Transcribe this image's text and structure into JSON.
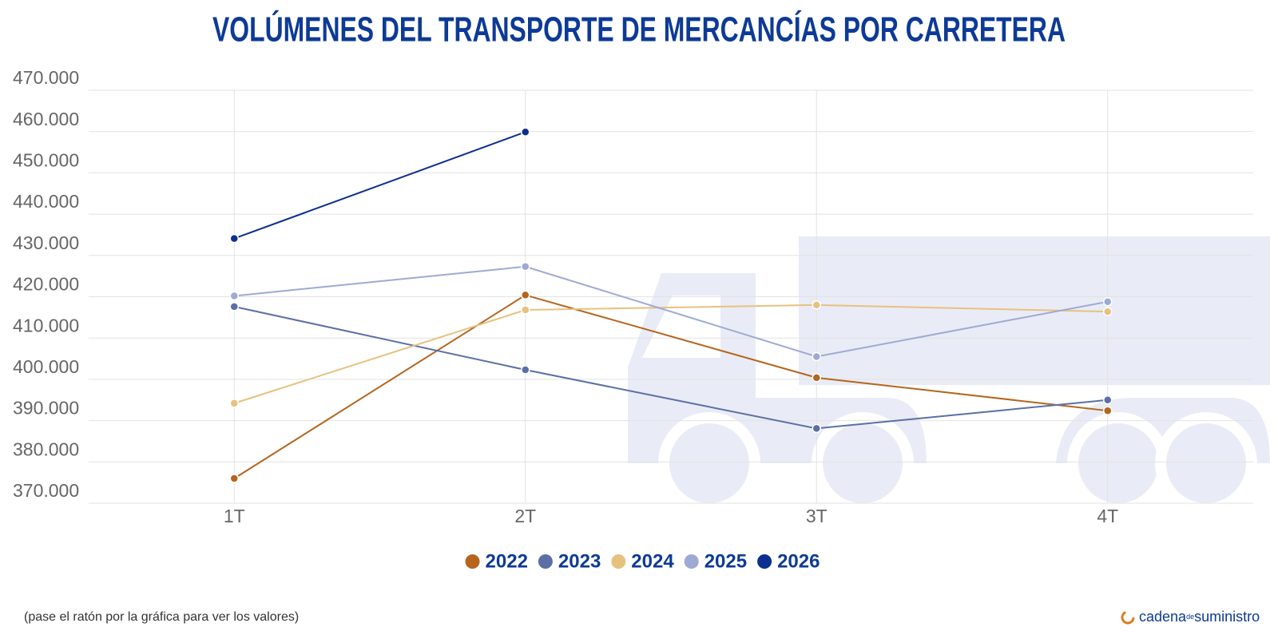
{
  "chart_data": {
    "type": "line",
    "title": "VOLÚMENES DEL TRANSPORTE DE MERCANCÍAS POR CARRETERA",
    "note": "(pase el ratón por la gráfica para ver los valores)",
    "categories": [
      "1T",
      "2T",
      "3T",
      "4T"
    ],
    "series": [
      {
        "name": "2022",
        "color": "#b5651d",
        "values": [
          376000,
          420400,
          400400,
          392400
        ]
      },
      {
        "name": "2023",
        "color": "#5b6fa6",
        "values": [
          417600,
          402300,
          388100,
          395000
        ]
      },
      {
        "name": "2024",
        "color": "#e8c17f",
        "values": [
          394200,
          416800,
          418000,
          416400
        ]
      },
      {
        "name": "2025",
        "color": "#9eaad3",
        "values": [
          420200,
          427300,
          405500,
          418800
        ]
      },
      {
        "name": "2026",
        "color": "#0d2f8f",
        "values": [
          434100,
          459900,
          null,
          null
        ]
      }
    ],
    "ylim": [
      370000,
      470000
    ],
    "yticks": [
      {
        "value": 370000,
        "label": "370.000"
      },
      {
        "value": 380000,
        "label": "380.000"
      },
      {
        "value": 390000,
        "label": "390.000"
      },
      {
        "value": 400000,
        "label": "400.000"
      },
      {
        "value": 410000,
        "label": "410.000"
      },
      {
        "value": 420000,
        "label": "420.000"
      },
      {
        "value": 430000,
        "label": "430.000"
      },
      {
        "value": 440000,
        "label": "440.000"
      },
      {
        "value": 450000,
        "label": "450.000"
      },
      {
        "value": 460000,
        "label": "460.000"
      },
      {
        "value": 470000,
        "label": "470.000"
      }
    ],
    "grid": true,
    "legend": "bottom"
  },
  "brand": [
    "cadena",
    "de",
    "suministro"
  ]
}
